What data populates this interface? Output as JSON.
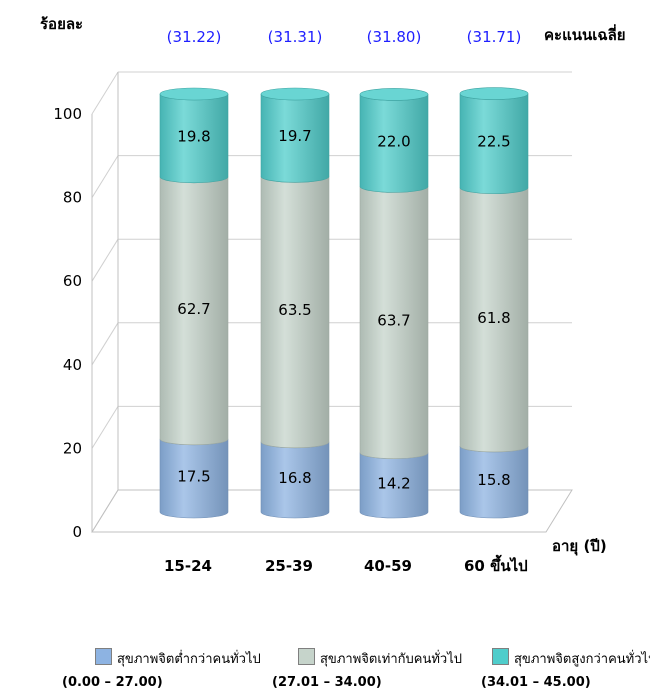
{
  "chart_data": {
    "type": "bar",
    "stacked": true,
    "style": "3d-cylinder",
    "ylabel": "ร้อยละ",
    "xlabel": "อายุ (ปี)",
    "ylim": [
      0,
      100
    ],
    "yticks": [
      "0",
      "20",
      "40",
      "60",
      "80",
      "100"
    ],
    "categories": [
      "15-24",
      "25-39",
      "40-59",
      "60 ขึ้นไป"
    ],
    "average_label": "คะแนนเฉลี่ย",
    "averages": [
      "(31.22)",
      "(31.31)",
      "(31.80)",
      "(31.71)"
    ],
    "average_color": "#1f1fff",
    "grid": true,
    "legend_position": "bottom",
    "series": [
      {
        "name": "สุขภาพจิตต่ำกว่าคนทั่วไป",
        "range": "(0.00 – 27.00)",
        "values": [
          17.5,
          16.8,
          14.2,
          15.8
        ],
        "labels": [
          "17.5",
          "16.8",
          "14.2",
          "15.8"
        ],
        "color": "#8db3e2"
      },
      {
        "name": "สุขภาพจิตเท่ากับคนทั่วไป",
        "range": "(27.01 – 34.00)",
        "values": [
          62.7,
          63.5,
          63.7,
          61.8
        ],
        "labels": [
          "62.7",
          "63.5",
          "63.7",
          "61.8"
        ],
        "color": "#c6d4cb"
      },
      {
        "name": "สุขภาพจิตสูงกว่าคนทั่วไป",
        "range": "(34.01 – 45.00)",
        "values": [
          19.8,
          19.7,
          22.0,
          22.5
        ],
        "labels": [
          "19.8",
          "19.7",
          "22.0",
          "22.5"
        ],
        "color": "#4fcdcb"
      }
    ]
  }
}
